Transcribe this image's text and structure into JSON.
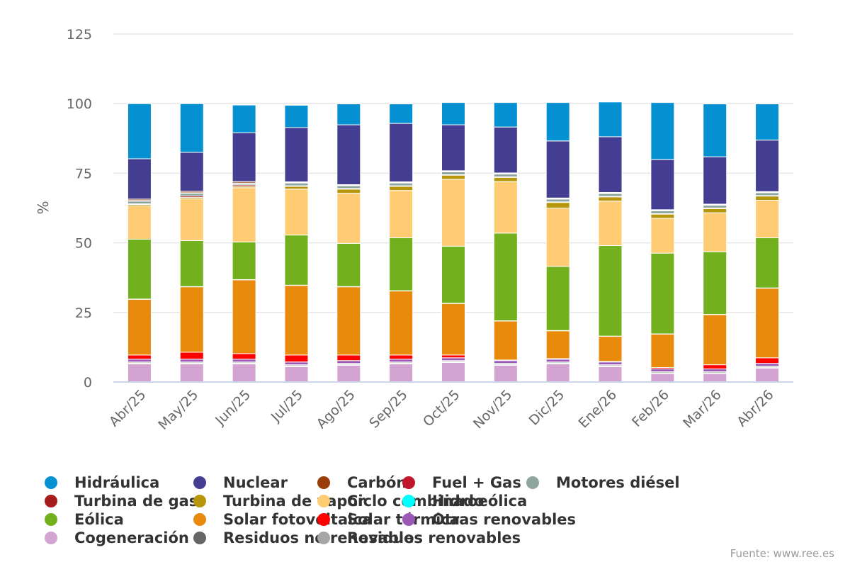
{
  "chart_data": {
    "type": "bar",
    "stacked": true,
    "ylabel": "%",
    "ylim": [
      0,
      125
    ],
    "yticks": [
      0,
      25,
      50,
      75,
      100,
      125
    ],
    "grid": true,
    "legend_position": "bottom",
    "categories": [
      "Abr/25",
      "May/25",
      "Jun/25",
      "Jul/25",
      "Ago/25",
      "Sep/25",
      "Oct/25",
      "Nov/25",
      "Dic/25",
      "Ene/26",
      "Feb/26",
      "Mar/26",
      "Abr/26"
    ],
    "series": [
      {
        "name": "Cogeneración",
        "color": "#d3a3d1",
        "values": [
          6.5,
          6.5,
          6.5,
          5.5,
          6.0,
          6.5,
          7.0,
          6.0,
          6.5,
          5.5,
          3.0,
          3.0,
          5.0
        ]
      },
      {
        "name": "Residuos no renovables",
        "color": "#666666",
        "values": [
          0.3,
          0.3,
          0.3,
          0.3,
          0.3,
          0.3,
          0.3,
          0.3,
          0.3,
          0.3,
          0.3,
          0.3,
          0.3
        ]
      },
      {
        "name": "Residuos renovables",
        "color": "#a6a6a6",
        "values": [
          0.4,
          0.4,
          0.4,
          0.4,
          0.4,
          0.4,
          0.4,
          0.4,
          0.4,
          0.4,
          0.4,
          0.4,
          0.4
        ]
      },
      {
        "name": "Otras renovables",
        "color": "#9b59b6",
        "values": [
          1.0,
          1.0,
          1.0,
          1.0,
          1.0,
          1.0,
          1.0,
          1.0,
          1.0,
          1.0,
          1.0,
          1.0,
          1.0
        ]
      },
      {
        "name": "Solar térmica",
        "color": "#ff0000",
        "values": [
          1.5,
          2.5,
          2.0,
          2.5,
          2.0,
          1.5,
          1.0,
          0.2,
          0.2,
          0.2,
          0.5,
          1.5,
          2.0
        ]
      },
      {
        "name": "Solar fotovoltaica",
        "color": "#e88a0c",
        "values": [
          20.0,
          23.5,
          26.5,
          25.0,
          24.5,
          23.0,
          18.5,
          14.0,
          10.0,
          9.0,
          12.0,
          18.0,
          25.0
        ]
      },
      {
        "name": "Hidroeólica",
        "color": "#00ffff",
        "values": [
          0.1,
          0.1,
          0.1,
          0.1,
          0.1,
          0.1,
          0.1,
          0.1,
          0.1,
          0.1,
          0.1,
          0.1,
          0.1
        ]
      },
      {
        "name": "Eólica",
        "color": "#72b01d",
        "values": [
          21.5,
          16.5,
          13.5,
          18.0,
          15.5,
          19.0,
          20.5,
          31.5,
          23.0,
          32.5,
          29.0,
          22.5,
          18.0
        ]
      },
      {
        "name": "Ciclo combinado",
        "color": "#ffcc73",
        "values": [
          12.0,
          15.0,
          19.5,
          16.5,
          18.0,
          17.0,
          24.0,
          18.5,
          21.0,
          16.0,
          12.5,
          14.0,
          13.5
        ]
      },
      {
        "name": "Turbina de vapor",
        "color": "#b8960c",
        "values": [
          0.5,
          0.5,
          0.5,
          1.0,
          1.5,
          1.5,
          1.5,
          1.5,
          2.0,
          1.5,
          1.5,
          1.5,
          1.5
        ]
      },
      {
        "name": "Turbina de gas",
        "color": "#a61c1c",
        "values": [
          0.2,
          0.5,
          0.5,
          0.2,
          0.2,
          0.2,
          0.2,
          0.2,
          0.2,
          0.2,
          0.2,
          0.2,
          0.2
        ]
      },
      {
        "name": "Motores diésel",
        "color": "#8fa6a0",
        "values": [
          1.0,
          1.0,
          0.5,
          1.0,
          1.0,
          1.0,
          1.0,
          1.0,
          1.0,
          1.0,
          1.0,
          1.0,
          1.0
        ]
      },
      {
        "name": "Fuel + Gas",
        "color": "#c0152a",
        "values": [
          0.2,
          0.2,
          0.2,
          0.2,
          0.2,
          0.2,
          0.2,
          0.2,
          0.2,
          0.2,
          0.2,
          0.2,
          0.2
        ]
      },
      {
        "name": "Carbón",
        "color": "#993d0b",
        "values": [
          0.5,
          0.5,
          0.5,
          0.2,
          0.2,
          0.2,
          0.2,
          0.2,
          0.2,
          0.2,
          0.2,
          0.2,
          0.2
        ]
      },
      {
        "name": "Nuclear",
        "color": "#433e91",
        "values": [
          14.5,
          14.0,
          17.5,
          19.5,
          21.5,
          21.0,
          16.5,
          16.5,
          20.5,
          20.0,
          18.0,
          17.0,
          18.5
        ]
      },
      {
        "name": "Hidráulica",
        "color": "#0591d1",
        "values": [
          19.8,
          17.5,
          10.0,
          8.0,
          7.5,
          7.0,
          8.0,
          8.8,
          13.8,
          12.5,
          20.5,
          19.0,
          13.0
        ]
      }
    ]
  },
  "legend": {
    "items": [
      {
        "label": "Hidráulica",
        "color": "#0591d1"
      },
      {
        "label": "Nuclear",
        "color": "#433e91"
      },
      {
        "label": "Carbón",
        "color": "#993d0b"
      },
      {
        "label": "Fuel + Gas",
        "color": "#c0152a"
      },
      {
        "label": "Motores diésel",
        "color": "#8fa6a0"
      },
      {
        "label": "Turbina de gas",
        "color": "#a61c1c"
      },
      {
        "label": "Turbina de vapor",
        "color": "#b8960c"
      },
      {
        "label": "Ciclo combinado",
        "color": "#ffcc73"
      },
      {
        "label": "Hidroeólica",
        "color": "#00ffff"
      },
      {
        "label": "",
        "color": ""
      },
      {
        "label": "Eólica",
        "color": "#72b01d"
      },
      {
        "label": "Solar fotovoltaica",
        "color": "#e88a0c"
      },
      {
        "label": "Solar térmica",
        "color": "#ff0000"
      },
      {
        "label": "Otras renovables",
        "color": "#9b59b6"
      },
      {
        "label": "",
        "color": ""
      },
      {
        "label": "Cogeneración",
        "color": "#d3a3d1"
      },
      {
        "label": "Residuos no renovables",
        "color": "#666666"
      },
      {
        "label": "Residuos renovables",
        "color": "#a6a6a6"
      }
    ]
  },
  "source": "Fuente: www.ree.es"
}
